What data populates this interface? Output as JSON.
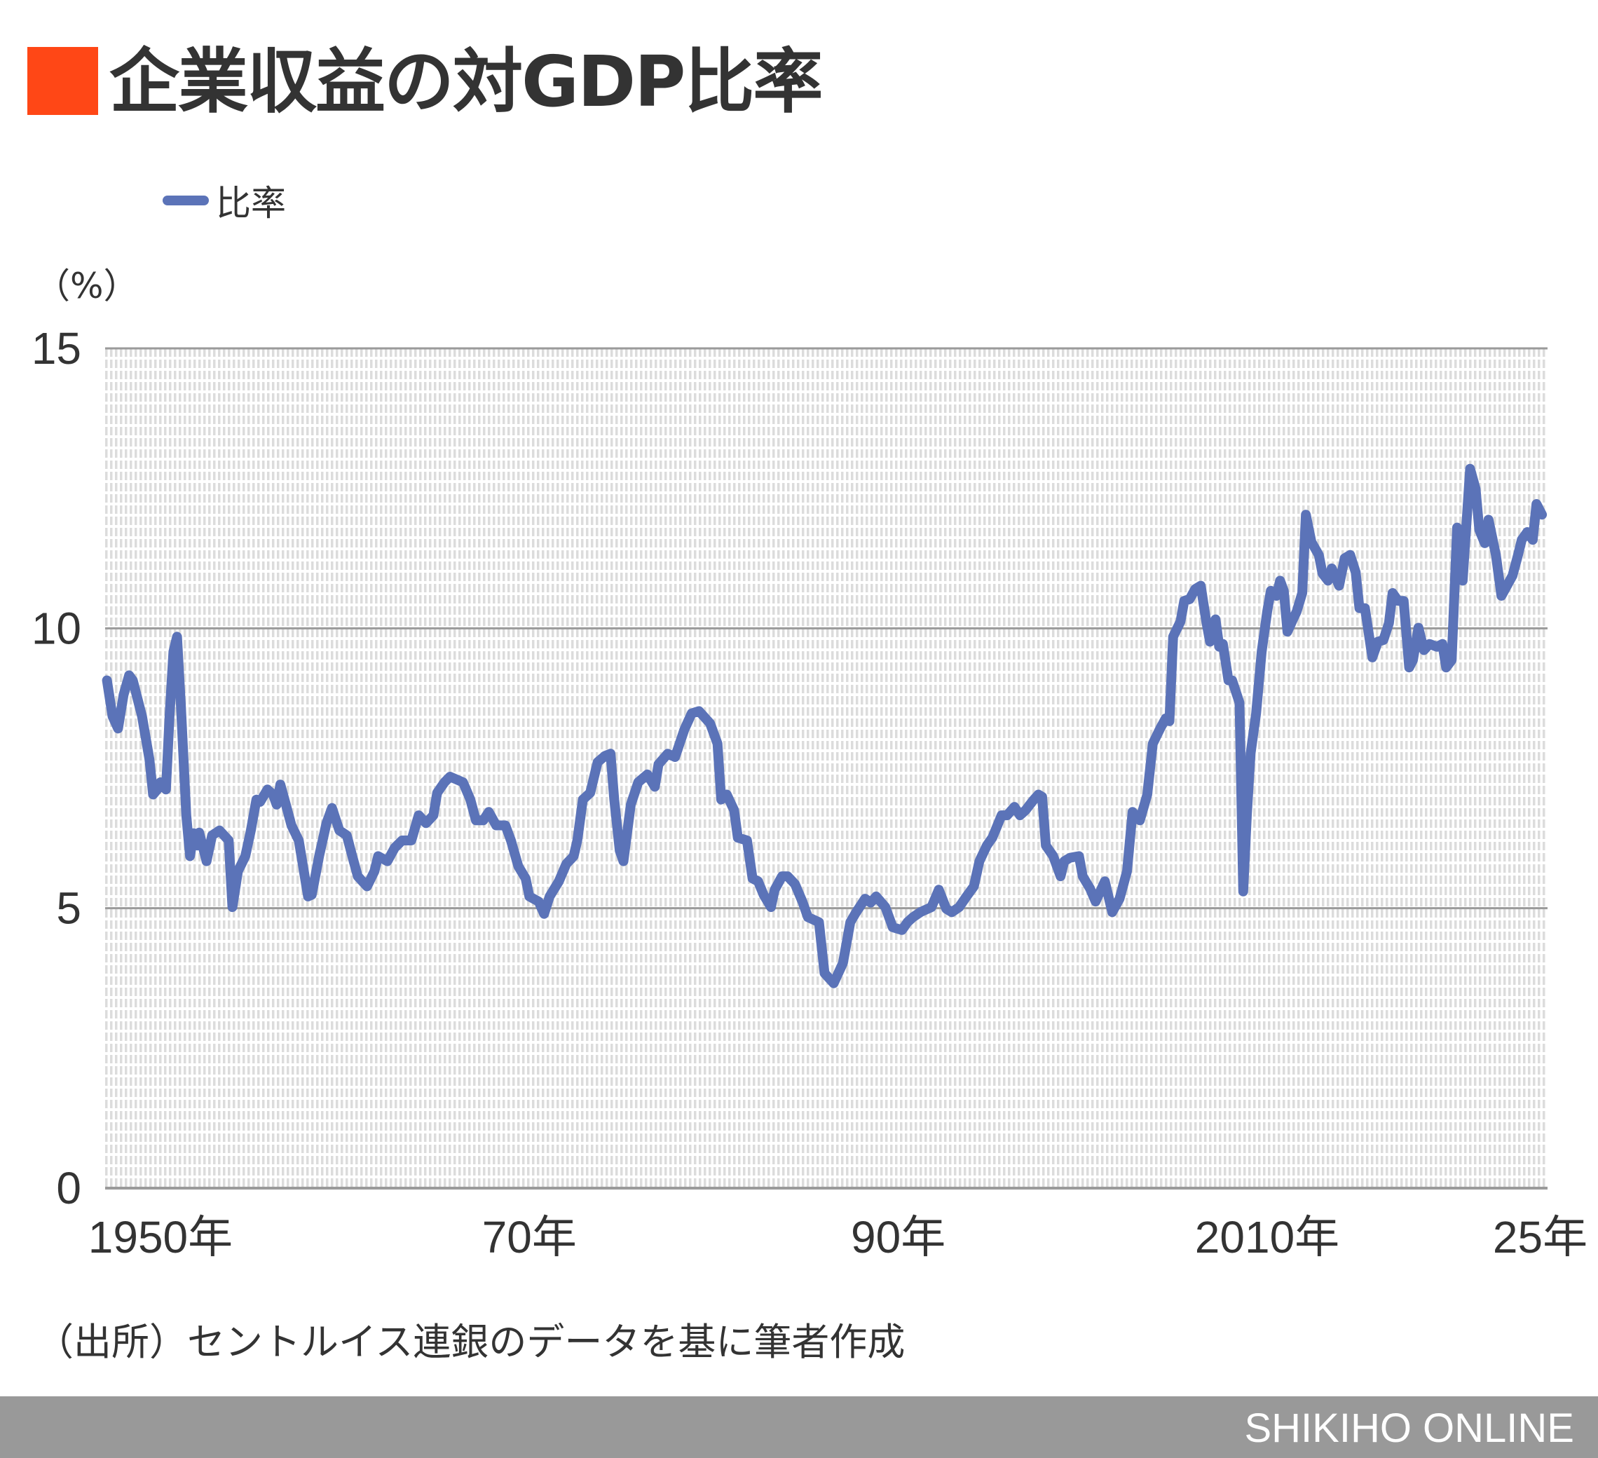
{
  "title": "企業収益の対GDP比率",
  "colors": {
    "title_mark": "#FF4716",
    "line": "#5B73B8",
    "major_grid": "#9A9A9A",
    "minor_grid": "#DCDCDC",
    "footer": "#999999"
  },
  "footer": {
    "brand": "SHIKIHO ONLINE"
  },
  "source": "（出所）セントルイス連銀のデータを基に筆者作成",
  "chart_data": {
    "type": "line",
    "title": "企業収益の対GDP比率",
    "unit_label": "（%）",
    "xlim": [
      1947,
      2025.2
    ],
    "ylim": [
      0,
      15
    ],
    "yticks": [
      0,
      5,
      10,
      15
    ],
    "ytick_labels": [
      "0",
      "5",
      "10",
      "15"
    ],
    "xticks": [
      1950,
      1970,
      1990,
      2010,
      2024.8
    ],
    "xtick_labels": [
      "1950年",
      "70年",
      "90年",
      "2010年",
      "25年"
    ],
    "grid": true,
    "legend_placement": "top-left",
    "series": [
      {
        "name": "比率",
        "x": [
          1947.1,
          1947.4,
          1947.7,
          1948.0,
          1948.3,
          1948.5,
          1949.0,
          1949.4,
          1949.6,
          1949.9,
          1950.0,
          1950.3,
          1950.5,
          1950.7,
          1950.9,
          1951.1,
          1951.4,
          1951.6,
          1951.8,
          1952.0,
          1952.1,
          1952.5,
          1952.8,
          1953.2,
          1953.7,
          1953.9,
          1954.2,
          1954.6,
          1954.9,
          1955.2,
          1955.4,
          1955.8,
          1956.1,
          1956.3,
          1956.5,
          1956.8,
          1957.1,
          1957.5,
          1958.0,
          1958.2,
          1958.6,
          1959.0,
          1959.3,
          1959.7,
          1960.1,
          1960.4,
          1960.7,
          1961.2,
          1961.6,
          1961.8,
          1962.3,
          1962.7,
          1963.1,
          1963.6,
          1964.0,
          1964.4,
          1964.8,
          1965.0,
          1965.4,
          1965.7,
          1966.4,
          1966.8,
          1967.1,
          1967.5,
          1967.8,
          1968.2,
          1968.7,
          1969.0,
          1969.4,
          1969.8,
          1970.0,
          1970.5,
          1970.8,
          1971.1,
          1971.6,
          1972.0,
          1972.4,
          1972.6,
          1972.9,
          1973.3,
          1973.7,
          1974.1,
          1974.4,
          1974.6,
          1974.9,
          1975.1,
          1975.5,
          1975.9,
          1976.4,
          1976.8,
          1977.0,
          1977.5,
          1977.9,
          1978.4,
          1978.8,
          1979.2,
          1979.8,
          1980.2,
          1980.4,
          1980.7,
          1981.1,
          1981.3,
          1981.8,
          1982.1,
          1982.4,
          1982.7,
          1983.1,
          1983.3,
          1983.7,
          1984.0,
          1984.4,
          1984.8,
          1985.1,
          1985.7,
          1986.0,
          1986.5,
          1987.0,
          1987.4,
          1987.7,
          1988.2,
          1988.5,
          1988.8,
          1989.3,
          1989.7,
          1990.2,
          1990.5,
          1990.8,
          1991.2,
          1991.8,
          1992.2,
          1992.6,
          1992.9,
          1993.3,
          1993.7,
          1994.1,
          1994.4,
          1994.8,
          1995.1,
          1995.6,
          1995.9,
          1996.3,
          1996.6,
          1996.9,
          1997.3,
          1997.6,
          1997.8,
          1998.0,
          1998.4,
          1998.8,
          1999.0,
          1999.3,
          1999.8,
          2000.0,
          2000.4,
          2000.7,
          2001.2,
          2001.6,
          2002.0,
          2002.4,
          2002.7,
          2003.1,
          2003.5,
          2003.8,
          2004.2,
          2004.5,
          2004.7,
          2004.9,
          2005.3,
          2005.5,
          2005.8,
          2006.1,
          2006.4,
          2006.7,
          2006.9,
          2007.2,
          2007.4,
          2007.6,
          2007.9,
          2008.1,
          2008.5,
          2008.7,
          2008.9,
          2009.1,
          2009.4,
          2009.7,
          2010.0,
          2010.2,
          2010.5,
          2010.7,
          2010.9,
          2011.1,
          2011.4,
          2011.6,
          2011.9,
          2012.1,
          2012.4,
          2012.8,
          2013.0,
          2013.3,
          2013.5,
          2013.9,
          2014.2,
          2014.5,
          2014.8,
          2015.0,
          2015.3,
          2015.7,
          2016.0,
          2016.3,
          2016.6,
          2016.8,
          2017.1,
          2017.4,
          2017.7,
          2017.9,
          2018.2,
          2018.5,
          2018.8,
          2019.2,
          2019.5,
          2019.7,
          2020.0,
          2020.3,
          2020.6,
          2021.0,
          2021.3,
          2021.5,
          2021.8,
          2022.0,
          2022.4,
          2022.7,
          2023.0,
          2023.3,
          2023.6,
          2023.8,
          2024.1,
          2024.4,
          2024.6,
          2024.9
        ],
        "y": [
          9.07,
          8.43,
          8.21,
          8.81,
          9.16,
          9.07,
          8.43,
          7.66,
          7.03,
          7.15,
          7.25,
          7.12,
          8.48,
          9.58,
          9.85,
          8.67,
          6.66,
          5.93,
          6.34,
          6.12,
          6.35,
          5.84,
          6.3,
          6.39,
          6.21,
          5.02,
          5.66,
          5.93,
          6.39,
          6.94,
          6.9,
          7.12,
          7.03,
          6.85,
          7.21,
          6.85,
          6.48,
          6.21,
          5.21,
          5.24,
          5.93,
          6.52,
          6.79,
          6.39,
          6.3,
          5.93,
          5.57,
          5.39,
          5.66,
          5.93,
          5.84,
          6.08,
          6.21,
          6.21,
          6.66,
          6.52,
          6.66,
          7.06,
          7.25,
          7.35,
          7.25,
          6.94,
          6.57,
          6.57,
          6.72,
          6.48,
          6.48,
          6.21,
          5.75,
          5.53,
          5.21,
          5.12,
          4.9,
          5.21,
          5.48,
          5.79,
          5.93,
          6.21,
          6.94,
          7.06,
          7.61,
          7.72,
          7.76,
          6.94,
          6.03,
          5.84,
          6.85,
          7.25,
          7.39,
          7.17,
          7.57,
          7.76,
          7.7,
          8.19,
          8.48,
          8.52,
          8.3,
          7.94,
          6.94,
          7.03,
          6.75,
          6.26,
          6.21,
          5.53,
          5.48,
          5.24,
          5.02,
          5.33,
          5.57,
          5.57,
          5.43,
          5.12,
          4.84,
          4.75,
          3.84,
          3.66,
          4.02,
          4.75,
          4.92,
          5.17,
          5.1,
          5.21,
          5.02,
          4.66,
          4.61,
          4.75,
          4.84,
          4.93,
          5.02,
          5.33,
          4.99,
          4.93,
          5.02,
          5.21,
          5.39,
          5.84,
          6.12,
          6.26,
          6.66,
          6.66,
          6.81,
          6.66,
          6.75,
          6.92,
          7.03,
          6.99,
          6.12,
          5.93,
          5.57,
          5.84,
          5.9,
          5.93,
          5.57,
          5.35,
          5.12,
          5.48,
          4.93,
          5.17,
          5.66,
          6.72,
          6.57,
          7.03,
          7.94,
          8.21,
          8.39,
          8.34,
          9.85,
          10.12,
          10.49,
          10.52,
          10.7,
          10.76,
          10.12,
          9.76,
          10.16,
          9.67,
          9.72,
          9.07,
          9.07,
          8.67,
          5.3,
          6.66,
          7.76,
          8.48,
          9.58,
          10.3,
          10.67,
          10.58,
          10.85,
          10.67,
          9.94,
          10.16,
          10.3,
          10.63,
          12.03,
          11.54,
          11.31,
          10.98,
          10.85,
          11.07,
          10.76,
          11.25,
          11.31,
          11.0,
          10.36,
          10.36,
          9.48,
          9.76,
          9.79,
          10.09,
          10.63,
          10.49,
          10.49,
          9.3,
          9.43,
          10.01,
          9.61,
          9.72,
          9.67,
          9.72,
          9.3,
          9.43,
          11.8,
          10.85,
          12.85,
          12.49,
          11.76,
          11.52,
          11.94,
          11.31,
          10.58,
          10.76,
          10.94,
          11.31,
          11.58,
          11.72,
          11.58,
          12.22,
          12.03
        ]
      }
    ]
  }
}
